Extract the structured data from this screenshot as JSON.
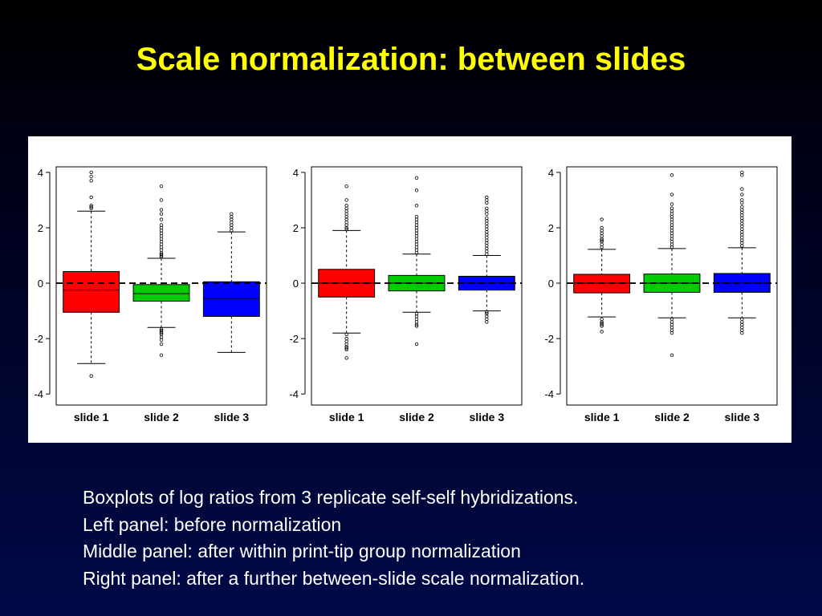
{
  "title": "Scale normalization: between slides",
  "caption": [
    "Boxplots of log ratios from 3 replicate self-self hybridizations.",
    "Left panel: before normalization",
    "Middle panel: after within print-tip group normalization",
    "Right panel: after a further between-slide scale normalization."
  ],
  "chart_data": [
    {
      "type": "boxplot",
      "panel": "left",
      "categories": [
        "slide 1",
        "slide 2",
        "slide 3"
      ],
      "ylim": [
        -4.4,
        4.2
      ],
      "yticks": [
        -4,
        -2,
        0,
        2,
        4
      ],
      "reference_line": 0,
      "colors": [
        "#ff0000",
        "#00cc00",
        "#0000ff"
      ],
      "boxes": [
        {
          "q1": -1.05,
          "median": -0.25,
          "q3": 0.42,
          "whisker_low": -2.9,
          "whisker_high": 2.6,
          "outliers_high": [
            2.7,
            2.75,
            2.8,
            3.1,
            3.7,
            3.85,
            4.0
          ],
          "outliers_low": [
            -3.35
          ]
        },
        {
          "q1": -0.65,
          "median": -0.38,
          "q3": -0.05,
          "whisker_low": -1.6,
          "whisker_high": 0.9,
          "outliers_high": [
            0.95,
            1.0,
            1.05,
            1.1,
            1.2,
            1.3,
            1.4,
            1.5,
            1.6,
            1.7,
            1.8,
            1.9,
            2.0,
            2.1,
            2.3,
            2.5,
            2.65,
            3.0,
            3.5
          ],
          "outliers_low": [
            -1.65,
            -1.7,
            -1.75,
            -1.8,
            -1.85,
            -1.95,
            -2.05,
            -2.2,
            -2.6
          ]
        },
        {
          "q1": -1.2,
          "median": -0.55,
          "q3": 0.05,
          "whisker_low": -2.5,
          "whisker_high": 1.85,
          "outliers_high": [
            1.9,
            2.0,
            2.1,
            2.2,
            2.3,
            2.4,
            2.5
          ],
          "outliers_low": []
        }
      ]
    },
    {
      "type": "boxplot",
      "panel": "middle",
      "categories": [
        "slide 1",
        "slide 2",
        "slide 3"
      ],
      "ylim": [
        -4.4,
        4.2
      ],
      "yticks": [
        -4,
        -2,
        0,
        2,
        4
      ],
      "reference_line": 0,
      "colors": [
        "#ff0000",
        "#00cc00",
        "#0000ff"
      ],
      "boxes": [
        {
          "q1": -0.5,
          "median": 0.0,
          "q3": 0.5,
          "whisker_low": -1.8,
          "whisker_high": 1.9,
          "outliers_high": [
            1.95,
            2.0,
            2.1,
            2.2,
            2.3,
            2.4,
            2.5,
            2.6,
            2.7,
            2.8,
            3.0,
            3.5
          ],
          "outliers_low": [
            -1.85,
            -2.0,
            -2.1,
            -2.2,
            -2.3,
            -2.35,
            -2.4,
            -2.7
          ]
        },
        {
          "q1": -0.28,
          "median": 0.0,
          "q3": 0.28,
          "whisker_low": -1.05,
          "whisker_high": 1.05,
          "outliers_high": [
            1.1,
            1.2,
            1.3,
            1.4,
            1.5,
            1.6,
            1.7,
            1.8,
            1.9,
            2.0,
            2.1,
            2.2,
            2.3,
            2.4,
            2.8,
            3.35,
            3.8
          ],
          "outliers_low": [
            -1.1,
            -1.2,
            -1.3,
            -1.4,
            -1.5,
            -1.55,
            -2.2
          ]
        },
        {
          "q1": -0.25,
          "median": 0.0,
          "q3": 0.25,
          "whisker_low": -1.0,
          "whisker_high": 1.0,
          "outliers_high": [
            1.05,
            1.15,
            1.25,
            1.35,
            1.45,
            1.55,
            1.65,
            1.75,
            1.85,
            1.95,
            2.05,
            2.15,
            2.25,
            2.35,
            2.5,
            2.6,
            2.7,
            2.9,
            3.0,
            3.1
          ],
          "outliers_low": [
            -1.05,
            -1.1,
            -1.2,
            -1.3,
            -1.4
          ]
        }
      ]
    },
    {
      "type": "boxplot",
      "panel": "right",
      "categories": [
        "slide 1",
        "slide 2",
        "slide 3"
      ],
      "ylim": [
        -4.4,
        4.2
      ],
      "yticks": [
        -4,
        -2,
        0,
        2,
        4
      ],
      "reference_line": 0,
      "colors": [
        "#ff0000",
        "#00cc00",
        "#0000ff"
      ],
      "boxes": [
        {
          "q1": -0.35,
          "median": 0.0,
          "q3": 0.32,
          "whisker_low": -1.22,
          "whisker_high": 1.22,
          "outliers_high": [
            1.3,
            1.4,
            1.5,
            1.55,
            1.6,
            1.7,
            1.8,
            1.9,
            2.0,
            2.3
          ],
          "outliers_low": [
            -1.3,
            -1.4,
            -1.45,
            -1.5,
            -1.55,
            -1.75
          ]
        },
        {
          "q1": -0.33,
          "median": 0.0,
          "q3": 0.33,
          "whisker_low": -1.25,
          "whisker_high": 1.25,
          "outliers_high": [
            1.3,
            1.4,
            1.5,
            1.6,
            1.7,
            1.8,
            1.9,
            2.0,
            2.1,
            2.2,
            2.3,
            2.4,
            2.5,
            2.6,
            2.7,
            2.85,
            3.2,
            3.9
          ],
          "outliers_low": [
            -1.3,
            -1.4,
            -1.5,
            -1.6,
            -1.7,
            -1.8,
            -2.6
          ]
        },
        {
          "q1": -0.33,
          "median": 0.0,
          "q3": 0.35,
          "whisker_low": -1.25,
          "whisker_high": 1.28,
          "outliers_high": [
            1.35,
            1.45,
            1.55,
            1.65,
            1.75,
            1.85,
            1.95,
            2.05,
            2.15,
            2.25,
            2.35,
            2.45,
            2.55,
            2.65,
            2.75,
            2.9,
            3.0,
            3.2,
            3.4,
            3.9,
            4.0
          ],
          "outliers_low": [
            -1.3,
            -1.4,
            -1.5,
            -1.6,
            -1.7,
            -1.8
          ]
        }
      ]
    }
  ]
}
